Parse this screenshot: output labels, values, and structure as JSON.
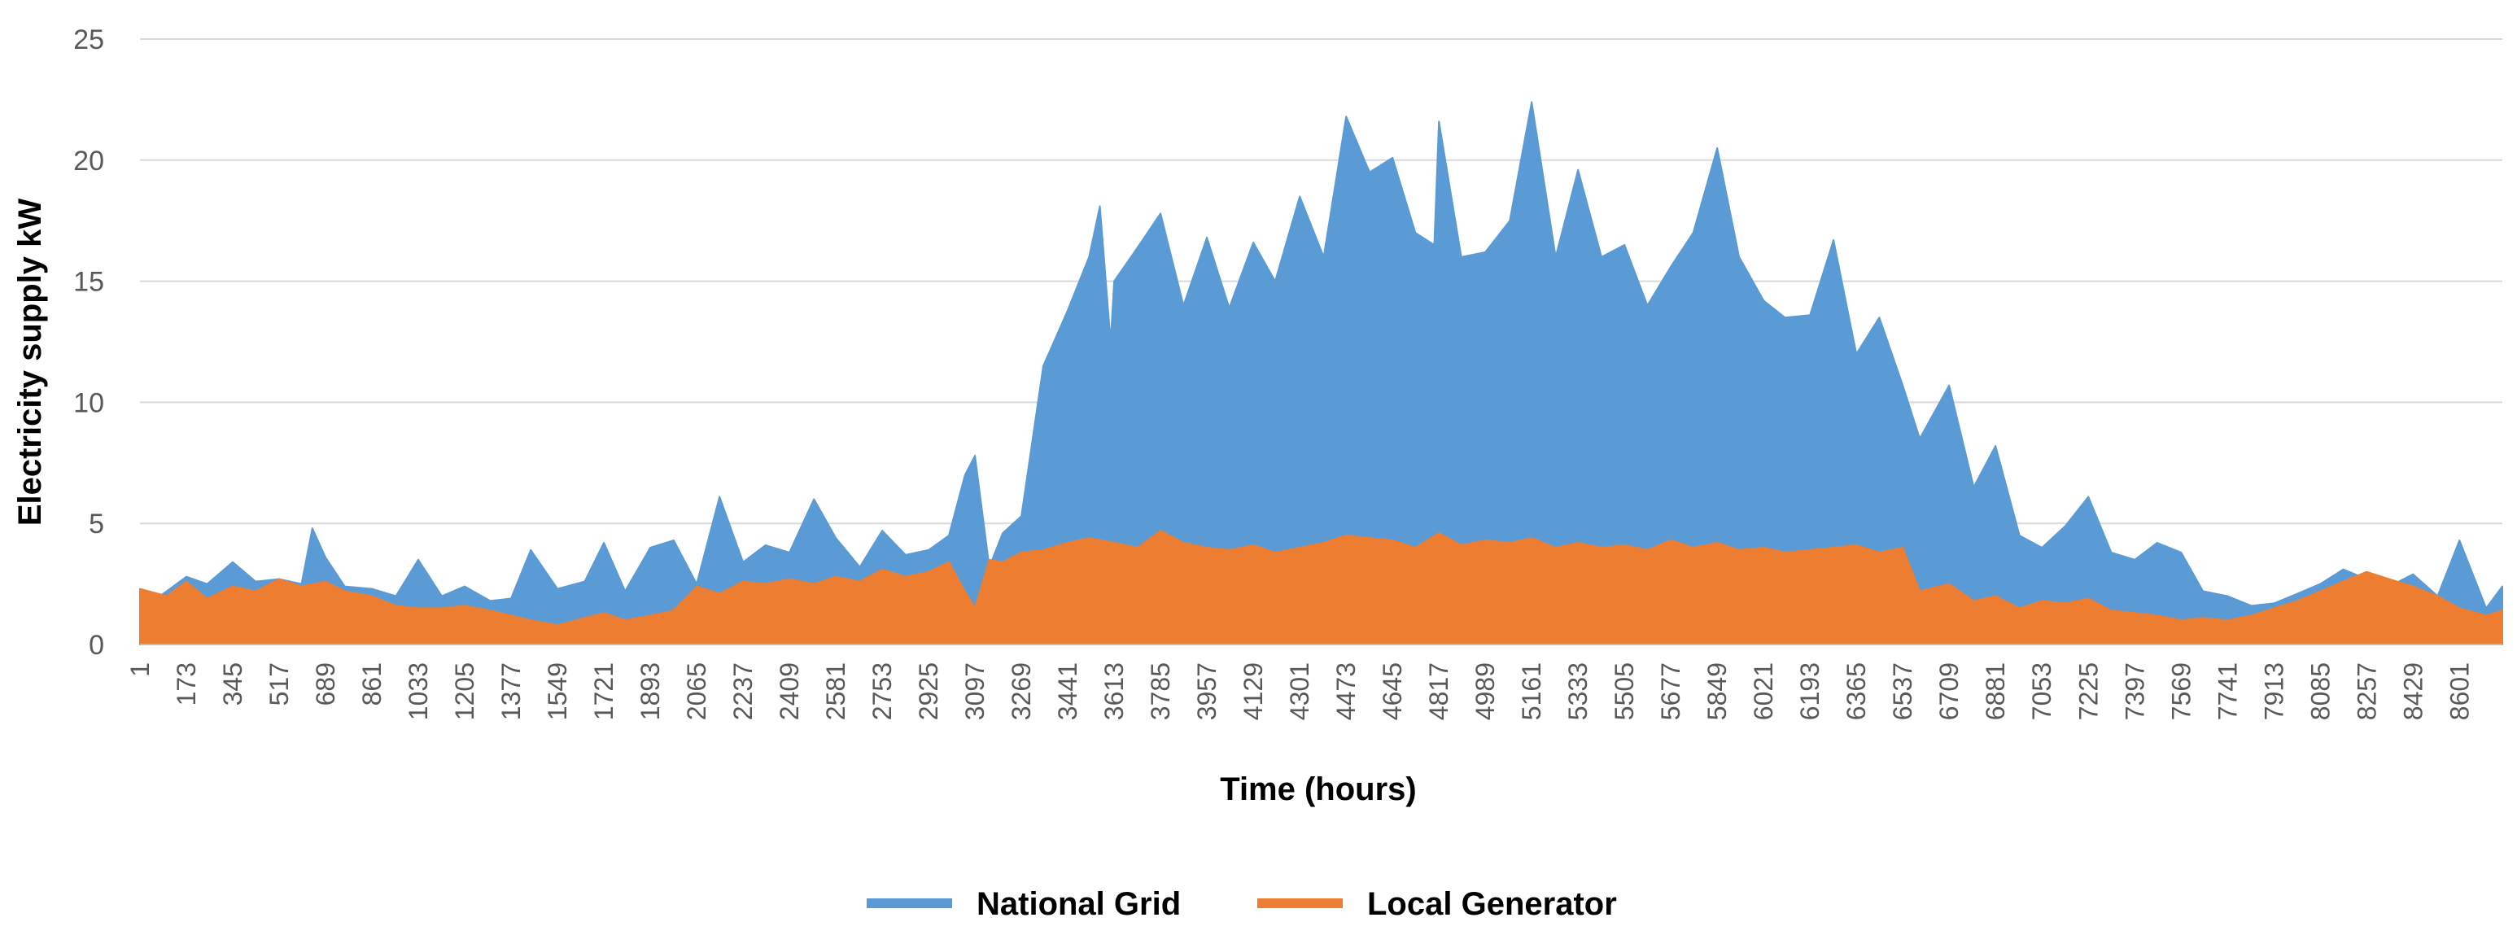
{
  "colors": {
    "national_grid": "#5b9bd5",
    "local_generator": "#ed7d31",
    "grid": "#d9d9d9",
    "tick": "#595959"
  },
  "chart_data": {
    "type": "area",
    "title": "",
    "xlabel": "Time (hours)",
    "ylabel": "Electricity supply  kW",
    "ylim": [
      0,
      25
    ],
    "xlim": [
      1,
      8760
    ],
    "y_ticks": [
      "0",
      "5",
      "10",
      "15",
      "20",
      "25"
    ],
    "x_tick_labels": [
      "1",
      "173",
      "345",
      "517",
      "689",
      "861",
      "1033",
      "1205",
      "1377",
      "1549",
      "1721",
      "1893",
      "2065",
      "2237",
      "2409",
      "2581",
      "2753",
      "2925",
      "3097",
      "3269",
      "3441",
      "3613",
      "3785",
      "3957",
      "4129",
      "4301",
      "4473",
      "4645",
      "4817",
      "4989",
      "5161",
      "5333",
      "5505",
      "5677",
      "5849",
      "6021",
      "6193",
      "6365",
      "6537",
      "6709",
      "6881",
      "7053",
      "7225",
      "7397",
      "7569",
      "7741",
      "7913",
      "8085",
      "8257",
      "8429",
      "8601"
    ],
    "legend": {
      "position": "bottom",
      "items": [
        "National Grid",
        "Local Generator"
      ]
    },
    "series": [
      {
        "name": "National Grid",
        "color": "#5b9bd5",
        "x": [
          1,
          100,
          173,
          250,
          345,
          430,
          517,
          600,
          640,
          689,
          760,
          861,
          950,
          1033,
          1120,
          1205,
          1300,
          1377,
          1450,
          1549,
          1650,
          1721,
          1800,
          1893,
          1980,
          2065,
          2150,
          2237,
          2320,
          2409,
          2500,
          2581,
          2670,
          2753,
          2840,
          2925,
          3000,
          3060,
          3097,
          3150,
          3200,
          3269,
          3350,
          3441,
          3520,
          3560,
          3600,
          3613,
          3700,
          3785,
          3870,
          3957,
          4040,
          4129,
          4210,
          4301,
          4390,
          4473,
          4560,
          4645,
          4730,
          4800,
          4817,
          4900,
          4989,
          5080,
          5161,
          5250,
          5333,
          5420,
          5505,
          5590,
          5677,
          5760,
          5849,
          5930,
          6021,
          6100,
          6193,
          6280,
          6365,
          6450,
          6537,
          6600,
          6709,
          6800,
          6881,
          6970,
          7053,
          7140,
          7225,
          7310,
          7397,
          7480,
          7569,
          7650,
          7741,
          7830,
          7913,
          8000,
          8085,
          8170,
          8257,
          8340,
          8429,
          8520,
          8601,
          8700,
          8760
        ],
        "values": [
          1.4,
          2.2,
          2.8,
          2.5,
          3.4,
          2.6,
          2.7,
          2.5,
          4.8,
          3.6,
          2.4,
          2.3,
          2.0,
          3.5,
          2.0,
          2.4,
          1.8,
          1.9,
          3.9,
          2.3,
          2.6,
          4.2,
          2.2,
          4.0,
          4.3,
          2.5,
          6.1,
          3.4,
          4.1,
          3.8,
          6.0,
          4.4,
          3.2,
          4.7,
          3.7,
          3.9,
          4.5,
          7.0,
          7.8,
          3.2,
          4.6,
          5.3,
          11.5,
          13.8,
          16.0,
          18.1,
          12.5,
          15.0,
          16.4,
          17.8,
          14.0,
          16.8,
          13.9,
          16.6,
          15.0,
          18.5,
          16.0,
          21.8,
          19.5,
          20.1,
          17.0,
          16.5,
          21.6,
          16.0,
          16.2,
          17.5,
          22.4,
          16.0,
          19.6,
          16.0,
          16.5,
          14.0,
          15.6,
          17.0,
          20.5,
          16.0,
          14.2,
          13.5,
          13.6,
          16.7,
          12.0,
          13.5,
          10.7,
          8.5,
          10.7,
          6.5,
          8.2,
          4.5,
          4.0,
          4.9,
          6.1,
          3.8,
          3.5,
          4.2,
          3.8,
          2.2,
          2.0,
          1.6,
          1.7,
          2.1,
          2.5,
          3.1,
          2.7,
          2.4,
          2.9,
          2.0,
          4.3,
          1.5,
          2.4
        ]
      },
      {
        "name": "Local Generator",
        "color": "#ed7d31",
        "x": [
          1,
          100,
          173,
          250,
          345,
          430,
          517,
          600,
          689,
          760,
          861,
          950,
          1033,
          1120,
          1205,
          1300,
          1377,
          1450,
          1549,
          1650,
          1721,
          1800,
          1893,
          1980,
          2065,
          2150,
          2237,
          2320,
          2409,
          2500,
          2581,
          2670,
          2753,
          2840,
          2925,
          3000,
          3060,
          3097,
          3150,
          3200,
          3269,
          3350,
          3441,
          3520,
          3613,
          3700,
          3785,
          3870,
          3957,
          4040,
          4129,
          4210,
          4301,
          4390,
          4473,
          4560,
          4645,
          4730,
          4817,
          4900,
          4989,
          5080,
          5161,
          5250,
          5333,
          5420,
          5505,
          5590,
          5677,
          5760,
          5849,
          5930,
          6021,
          6100,
          6193,
          6280,
          6365,
          6450,
          6537,
          6600,
          6709,
          6800,
          6881,
          6970,
          7053,
          7140,
          7225,
          7310,
          7397,
          7480,
          7569,
          7650,
          7741,
          7830,
          7913,
          8000,
          8085,
          8170,
          8257,
          8340,
          8429,
          8520,
          8601,
          8700,
          8760
        ],
        "values": [
          2.3,
          2.0,
          2.6,
          1.9,
          2.4,
          2.2,
          2.7,
          2.4,
          2.6,
          2.2,
          2.0,
          1.6,
          1.5,
          1.5,
          1.6,
          1.4,
          1.2,
          1.0,
          0.8,
          1.1,
          1.3,
          1.0,
          1.2,
          1.4,
          2.4,
          2.1,
          2.6,
          2.5,
          2.7,
          2.5,
          2.8,
          2.6,
          3.1,
          2.8,
          3.0,
          3.4,
          2.2,
          1.5,
          3.5,
          3.4,
          3.8,
          3.9,
          4.2,
          4.4,
          4.2,
          4.0,
          4.7,
          4.2,
          4.0,
          3.9,
          4.1,
          3.8,
          4.0,
          4.2,
          4.5,
          4.4,
          4.3,
          4.0,
          4.6,
          4.1,
          4.3,
          4.2,
          4.4,
          4.0,
          4.2,
          4.0,
          4.1,
          3.9,
          4.3,
          4.0,
          4.2,
          3.9,
          4.0,
          3.8,
          3.9,
          4.0,
          4.1,
          3.8,
          4.0,
          2.2,
          2.5,
          1.8,
          2.0,
          1.5,
          1.8,
          1.7,
          1.9,
          1.4,
          1.3,
          1.2,
          1.0,
          1.1,
          1.0,
          1.2,
          1.5,
          1.8,
          2.2,
          2.6,
          3.0,
          2.7,
          2.4,
          2.0,
          1.5,
          1.2,
          1.4
        ]
      }
    ]
  }
}
